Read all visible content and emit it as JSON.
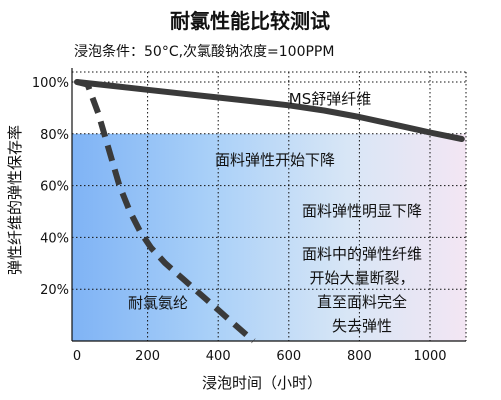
{
  "chart_data": {
    "type": "line",
    "title": "耐氯性能比较测试",
    "subtitle": "浸泡条件：50°C,次氯酸钠浓度=100PPM",
    "xlabel": "浸泡时间（小时）",
    "ylabel": "弹性纤维的弹性保存率",
    "xlim": [
      0,
      1000
    ],
    "ylim": [
      0,
      100
    ],
    "x_ticks": [
      "0",
      "200",
      "400",
      "600",
      "800",
      "1000"
    ],
    "y_ticks": [
      "20%",
      "40%",
      "60%",
      "80%",
      "100%"
    ],
    "grid": true,
    "series": [
      {
        "name": "MS舒弹纤维",
        "style": "solid",
        "color": "#3a3a3a",
        "x": [
          0,
          100,
          200,
          300,
          400,
          500,
          600,
          700,
          800,
          900,
          1000,
          1090
        ],
        "y": [
          100,
          98.5,
          97,
          95.5,
          94,
          92.5,
          91,
          89,
          86.5,
          83.5,
          80.5,
          78
        ]
      },
      {
        "name": "耐氯氨纶",
        "style": "dashed",
        "color": "#3a3a3a",
        "x": [
          0,
          30,
          60,
          90,
          120,
          150,
          180,
          210,
          250,
          300,
          350,
          400,
          450,
          500
        ],
        "y": [
          100,
          99,
          88,
          74,
          60,
          50,
          42,
          36,
          30,
          24,
          18,
          12,
          6,
          0
        ]
      }
    ],
    "bands": [
      {
        "from": 80,
        "to": 100,
        "label": ""
      },
      {
        "from": 60,
        "to": 80,
        "label": "面料弹性开始下降"
      },
      {
        "from": 40,
        "to": 60,
        "label": "面料弹性明显下降"
      },
      {
        "from": 0,
        "to": 40,
        "label": "面料中的弹性纤维\n开始大量断裂，\n直至面料完全\n失去弹性"
      }
    ],
    "band_gradient": [
      "#7fb3f5",
      "#a9d0f8",
      "#d8e6f6",
      "#f3e6f3"
    ]
  }
}
